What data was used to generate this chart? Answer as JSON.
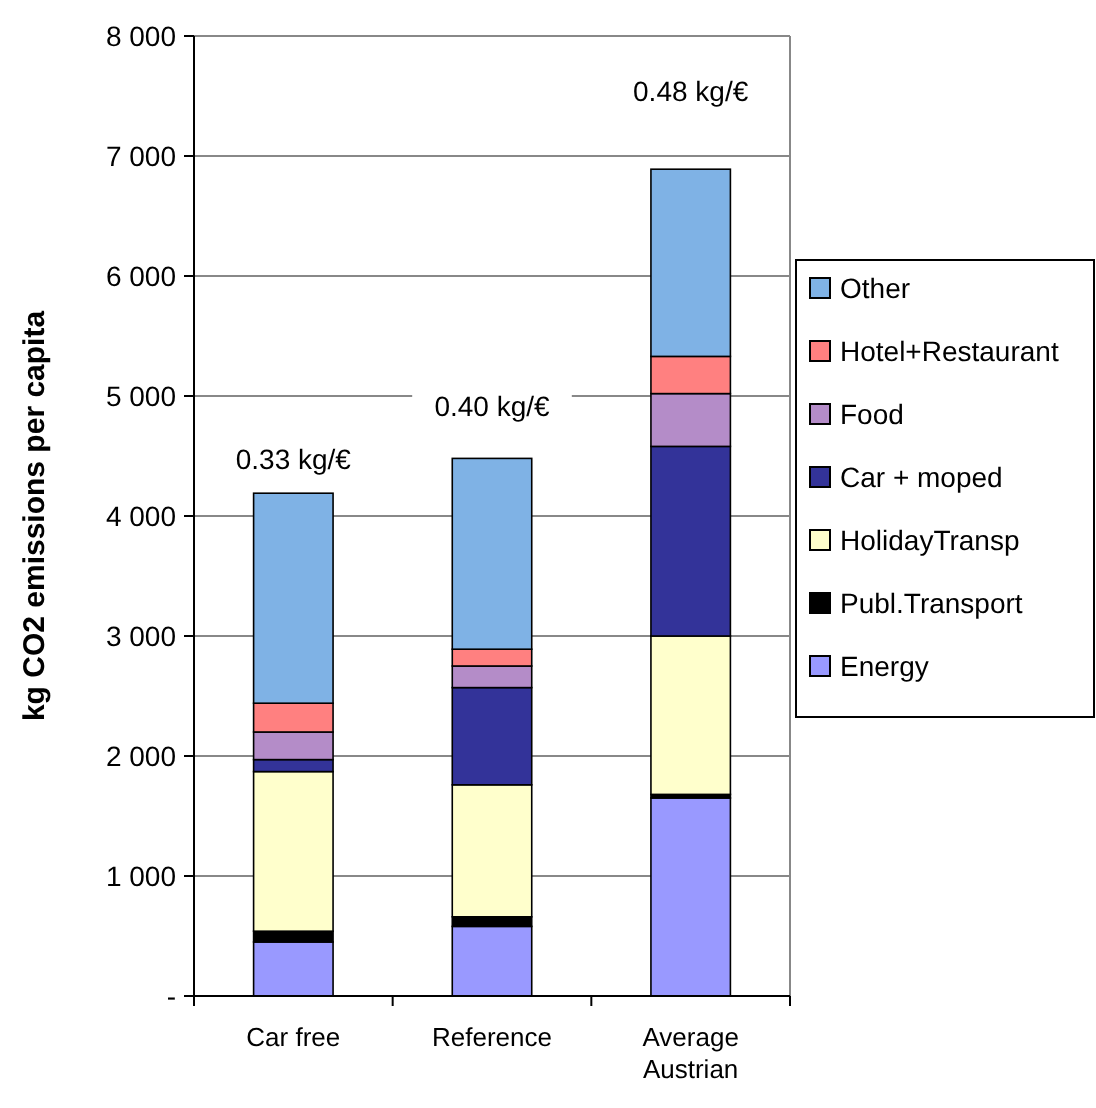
{
  "chart_data": {
    "type": "bar",
    "stacked": true,
    "ylabel": "kg CO2 emissions per capita",
    "categories": [
      "Car free",
      "Reference",
      "Average Austrian"
    ],
    "series": [
      {
        "name": "Energy",
        "color": "#9999ff",
        "values": [
          450,
          580,
          1650
        ]
      },
      {
        "name": "Publ.Transport",
        "color": "#000000",
        "values": [
          90,
          80,
          30
        ]
      },
      {
        "name": "HolidayTransp",
        "color": "#ffffcc",
        "values": [
          1330,
          1100,
          1320
        ]
      },
      {
        "name": "Car + moped",
        "color": "#333399",
        "values": [
          100,
          810,
          1580
        ]
      },
      {
        "name": "Food",
        "color": "#b48cc8",
        "values": [
          230,
          180,
          440
        ]
      },
      {
        "name": "Hotel+Restaurant",
        "color": "#ff8080",
        "values": [
          240,
          140,
          310
        ]
      },
      {
        "name": "Other",
        "color": "#7fb2e5",
        "values": [
          1750,
          1590,
          1560
        ]
      }
    ],
    "ylim": [
      0,
      8000
    ],
    "yticks": [
      {
        "value": 0,
        "label": "-"
      },
      {
        "value": 1000,
        "label": "1 000"
      },
      {
        "value": 2000,
        "label": "2 000"
      },
      {
        "value": 3000,
        "label": "3 000"
      },
      {
        "value": 4000,
        "label": "4 000"
      },
      {
        "value": 5000,
        "label": "5 000"
      },
      {
        "value": 6000,
        "label": "6 000"
      },
      {
        "value": 7000,
        "label": "7 000"
      },
      {
        "value": 8000,
        "label": "8 000"
      }
    ],
    "grid": "y",
    "legend": "right",
    "annotations": [
      "0.33 kg/€",
      "0.40 kg/€",
      "0.48 kg/€"
    ]
  }
}
